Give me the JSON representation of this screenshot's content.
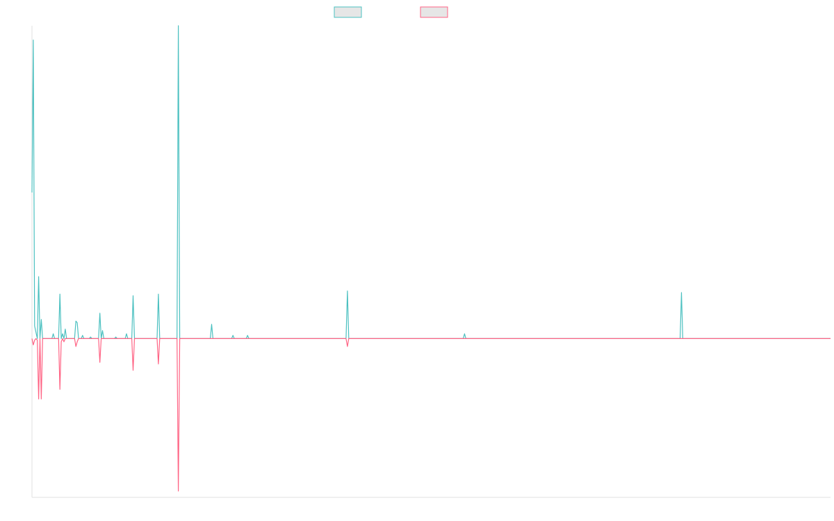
{
  "chart_data": {
    "type": "line",
    "title": "",
    "xlabel": "",
    "ylabel": "",
    "x_range": [
      0,
      600
    ],
    "ylim": [
      -100,
      197
    ],
    "grid": false,
    "legend_position": "top-center",
    "colors": {
      "positive": "#4bc0c0",
      "negative": "#ff6384",
      "legend_fill": "#e6e6e6",
      "axis": "#e0e0e0"
    },
    "series": [
      {
        "color": "#4bc0c0",
        "points": [
          [
            0,
            92
          ],
          [
            1,
            188
          ],
          [
            2,
            8
          ],
          [
            3,
            4
          ],
          [
            4,
            0
          ],
          [
            5,
            39
          ],
          [
            6,
            0
          ],
          [
            7,
            12
          ],
          [
            8,
            0
          ],
          [
            15,
            0
          ],
          [
            16,
            3
          ],
          [
            17,
            0
          ],
          [
            20,
            0
          ],
          [
            21,
            28
          ],
          [
            22,
            0
          ],
          [
            23,
            3
          ],
          [
            24,
            0
          ],
          [
            25,
            6
          ],
          [
            26,
            0
          ],
          [
            32,
            0
          ],
          [
            33,
            11
          ],
          [
            34,
            10
          ],
          [
            35,
            0
          ],
          [
            37,
            0
          ],
          [
            38,
            2
          ],
          [
            39,
            0
          ],
          [
            43,
            0
          ],
          [
            44,
            1
          ],
          [
            45,
            0
          ],
          [
            50,
            0
          ],
          [
            51,
            16
          ],
          [
            52,
            0
          ],
          [
            53,
            5
          ],
          [
            54,
            0
          ],
          [
            62,
            0
          ],
          [
            63,
            1
          ],
          [
            64,
            0
          ],
          [
            70,
            0
          ],
          [
            71,
            3
          ],
          [
            72,
            0
          ],
          [
            75,
            0
          ],
          [
            76,
            27
          ],
          [
            77,
            0
          ],
          [
            94,
            0
          ],
          [
            95,
            28
          ],
          [
            96,
            0
          ],
          [
            109,
            0
          ],
          [
            110,
            197
          ],
          [
            111,
            0
          ],
          [
            134,
            0
          ],
          [
            135,
            9
          ],
          [
            136,
            0
          ],
          [
            150,
            0
          ],
          [
            151,
            2
          ],
          [
            152,
            0
          ],
          [
            161,
            0
          ],
          [
            162,
            2
          ],
          [
            163,
            0
          ],
          [
            236,
            0
          ],
          [
            237,
            30
          ],
          [
            238,
            0
          ],
          [
            324,
            0
          ],
          [
            325,
            3
          ],
          [
            326,
            0
          ],
          [
            487,
            0
          ],
          [
            488,
            29
          ],
          [
            489,
            0
          ],
          [
            600,
            0
          ]
        ]
      },
      {
        "color": "#ff6384",
        "points": [
          [
            0,
            0
          ],
          [
            1,
            -4
          ],
          [
            2,
            -1
          ],
          [
            3,
            0
          ],
          [
            4,
            -1
          ],
          [
            5,
            -38
          ],
          [
            6,
            0
          ],
          [
            7,
            -38
          ],
          [
            8,
            0
          ],
          [
            20,
            0
          ],
          [
            21,
            -32
          ],
          [
            22,
            -2
          ],
          [
            23,
            0
          ],
          [
            24,
            -2
          ],
          [
            25,
            0
          ],
          [
            32,
            0
          ],
          [
            33,
            -5
          ],
          [
            34,
            -2
          ],
          [
            35,
            0
          ],
          [
            50,
            0
          ],
          [
            51,
            -15
          ],
          [
            52,
            0
          ],
          [
            75,
            0
          ],
          [
            76,
            -20
          ],
          [
            77,
            0
          ],
          [
            94,
            0
          ],
          [
            95,
            -16
          ],
          [
            96,
            0
          ],
          [
            109,
            0
          ],
          [
            110,
            -96
          ],
          [
            111,
            0
          ],
          [
            236,
            0
          ],
          [
            237,
            -5
          ],
          [
            238,
            0
          ],
          [
            600,
            0
          ]
        ]
      }
    ]
  }
}
